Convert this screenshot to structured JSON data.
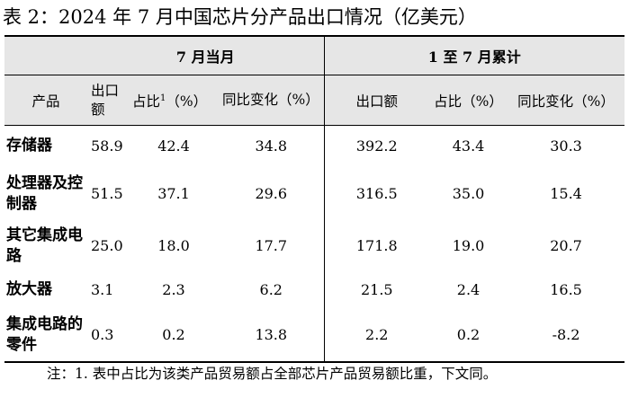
{
  "title": "表 2：2024 年 7 月中国芯片分产品出口情况（亿美元）",
  "groups": {
    "month": "7 月当月",
    "cumulative": "1 至 7 月累计"
  },
  "headers": {
    "product": "产品",
    "export_month": "出口额",
    "share_month": "占比",
    "share_month_sup": "1",
    "share_month_unit": "（%）",
    "yoy_month": "同比变化（%）",
    "export_cum": "出口额",
    "share_cum": "占比（%）",
    "yoy_cum": "同比变化（%）"
  },
  "rows": [
    {
      "product": "存储器",
      "export_month": "58.9",
      "share_month": "42.4",
      "yoy_month": "34.8",
      "export_cum": "392.2",
      "share_cum": "43.4",
      "yoy_cum": "30.3"
    },
    {
      "product": "处理器及控制器",
      "export_month": "51.5",
      "share_month": "37.1",
      "yoy_month": "29.6",
      "export_cum": "316.5",
      "share_cum": "35.0",
      "yoy_cum": "15.4"
    },
    {
      "product": "其它集成电路",
      "export_month": "25.0",
      "share_month": "18.0",
      "yoy_month": "17.7",
      "export_cum": "171.8",
      "share_cum": "19.0",
      "yoy_cum": "20.7"
    },
    {
      "product": "放大器",
      "export_month": "3.1",
      "share_month": "2.3",
      "yoy_month": "6.2",
      "export_cum": "21.5",
      "share_cum": "2.4",
      "yoy_cum": "16.5"
    },
    {
      "product": "集成电路的零件",
      "export_month": "0.3",
      "share_month": "0.2",
      "yoy_month": "13.8",
      "export_cum": "2.2",
      "share_cum": "0.2",
      "yoy_cum": "-8.2"
    }
  ],
  "note": "注：1. 表中占比为该类产品贸易额占全部芯片产品贸易额比重，下文同。"
}
